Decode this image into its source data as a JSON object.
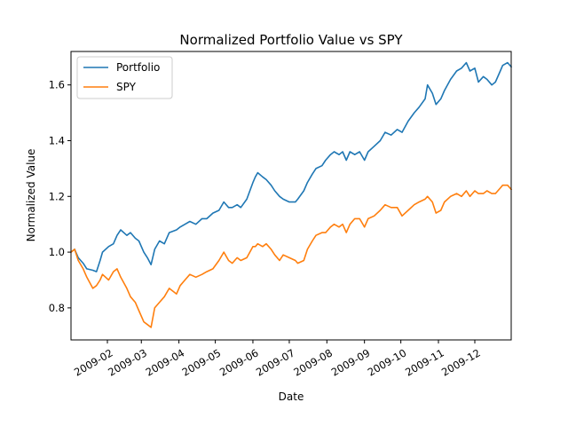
{
  "chart_data": {
    "type": "line",
    "title": "Normalized Portfolio Value vs SPY",
    "xlabel": "Date",
    "ylabel": "Normalized Value",
    "xlim": [
      "2009-01-02",
      "2009-12-31"
    ],
    "ylim": [
      0.685,
      1.72
    ],
    "x_ticks": [
      "2009-02-01",
      "2009-03-01",
      "2009-04-01",
      "2009-05-01",
      "2009-06-01",
      "2009-07-01",
      "2009-08-01",
      "2009-09-01",
      "2009-10-01",
      "2009-11-01",
      "2009-12-01"
    ],
    "x_tick_labels": [
      "2009-02",
      "2009-03",
      "2009-04",
      "2009-05",
      "2009-06",
      "2009-07",
      "2009-08",
      "2009-09",
      "2009-10",
      "2009-11",
      "2009-12"
    ],
    "y_ticks": [
      0.8,
      1.0,
      1.2,
      1.4,
      1.6
    ],
    "y_tick_labels": [
      "0.8",
      "1.0",
      "1.2",
      "1.4",
      "1.6"
    ],
    "legend_position": "top-left",
    "grid": false,
    "series": [
      {
        "name": "Portfolio",
        "color": "#1f77b4",
        "points": [
          [
            "2009-01-02",
            1.0
          ],
          [
            "2009-01-05",
            1.01
          ],
          [
            "2009-01-08",
            0.98
          ],
          [
            "2009-01-12",
            0.96
          ],
          [
            "2009-01-15",
            0.94
          ],
          [
            "2009-01-20",
            0.935
          ],
          [
            "2009-01-23",
            0.93
          ],
          [
            "2009-01-26",
            0.97
          ],
          [
            "2009-01-28",
            1.0
          ],
          [
            "2009-02-02",
            1.02
          ],
          [
            "2009-02-06",
            1.03
          ],
          [
            "2009-02-09",
            1.06
          ],
          [
            "2009-02-12",
            1.08
          ],
          [
            "2009-02-17",
            1.06
          ],
          [
            "2009-02-20",
            1.07
          ],
          [
            "2009-02-24",
            1.05
          ],
          [
            "2009-02-27",
            1.04
          ],
          [
            "2009-03-03",
            1.0
          ],
          [
            "2009-03-06",
            0.98
          ],
          [
            "2009-03-09",
            0.955
          ],
          [
            "2009-03-12",
            1.01
          ],
          [
            "2009-03-16",
            1.04
          ],
          [
            "2009-03-20",
            1.03
          ],
          [
            "2009-03-24",
            1.07
          ],
          [
            "2009-03-30",
            1.08
          ],
          [
            "2009-04-02",
            1.09
          ],
          [
            "2009-04-06",
            1.1
          ],
          [
            "2009-04-10",
            1.11
          ],
          [
            "2009-04-15",
            1.1
          ],
          [
            "2009-04-20",
            1.12
          ],
          [
            "2009-04-24",
            1.12
          ],
          [
            "2009-04-29",
            1.14
          ],
          [
            "2009-05-04",
            1.15
          ],
          [
            "2009-05-08",
            1.18
          ],
          [
            "2009-05-12",
            1.16
          ],
          [
            "2009-05-15",
            1.16
          ],
          [
            "2009-05-19",
            1.17
          ],
          [
            "2009-05-22",
            1.16
          ],
          [
            "2009-05-27",
            1.19
          ],
          [
            "2009-06-01",
            1.25
          ],
          [
            "2009-06-03",
            1.27
          ],
          [
            "2009-06-05",
            1.285
          ],
          [
            "2009-06-09",
            1.27
          ],
          [
            "2009-06-12",
            1.26
          ],
          [
            "2009-06-16",
            1.24
          ],
          [
            "2009-06-19",
            1.22
          ],
          [
            "2009-06-23",
            1.2
          ],
          [
            "2009-06-26",
            1.19
          ],
          [
            "2009-07-01",
            1.18
          ],
          [
            "2009-07-06",
            1.18
          ],
          [
            "2009-07-08",
            1.19
          ],
          [
            "2009-07-13",
            1.22
          ],
          [
            "2009-07-16",
            1.25
          ],
          [
            "2009-07-20",
            1.28
          ],
          [
            "2009-07-23",
            1.3
          ],
          [
            "2009-07-28",
            1.31
          ],
          [
            "2009-07-31",
            1.33
          ],
          [
            "2009-08-04",
            1.35
          ],
          [
            "2009-08-07",
            1.36
          ],
          [
            "2009-08-11",
            1.35
          ],
          [
            "2009-08-14",
            1.36
          ],
          [
            "2009-08-17",
            1.33
          ],
          [
            "2009-08-20",
            1.36
          ],
          [
            "2009-08-24",
            1.35
          ],
          [
            "2009-08-28",
            1.36
          ],
          [
            "2009-09-01",
            1.33
          ],
          [
            "2009-09-04",
            1.36
          ],
          [
            "2009-09-09",
            1.38
          ],
          [
            "2009-09-14",
            1.4
          ],
          [
            "2009-09-18",
            1.43
          ],
          [
            "2009-09-23",
            1.42
          ],
          [
            "2009-09-28",
            1.44
          ],
          [
            "2009-10-02",
            1.43
          ],
          [
            "2009-10-07",
            1.47
          ],
          [
            "2009-10-12",
            1.5
          ],
          [
            "2009-10-16",
            1.52
          ],
          [
            "2009-10-21",
            1.55
          ],
          [
            "2009-10-23",
            1.6
          ],
          [
            "2009-10-27",
            1.57
          ],
          [
            "2009-10-30",
            1.53
          ],
          [
            "2009-11-03",
            1.55
          ],
          [
            "2009-11-06",
            1.58
          ],
          [
            "2009-11-11",
            1.62
          ],
          [
            "2009-11-16",
            1.65
          ],
          [
            "2009-11-20",
            1.66
          ],
          [
            "2009-11-24",
            1.68
          ],
          [
            "2009-11-27",
            1.65
          ],
          [
            "2009-12-01",
            1.66
          ],
          [
            "2009-12-04",
            1.61
          ],
          [
            "2009-12-08",
            1.63
          ],
          [
            "2009-12-11",
            1.62
          ],
          [
            "2009-12-15",
            1.6
          ],
          [
            "2009-12-18",
            1.61
          ],
          [
            "2009-12-22",
            1.65
          ],
          [
            "2009-12-24",
            1.67
          ],
          [
            "2009-12-28",
            1.68
          ],
          [
            "2009-12-31",
            1.665
          ]
        ]
      },
      {
        "name": "SPY",
        "color": "#ff7f0e",
        "points": [
          [
            "2009-01-02",
            1.0
          ],
          [
            "2009-01-05",
            1.01
          ],
          [
            "2009-01-08",
            0.97
          ],
          [
            "2009-01-12",
            0.94
          ],
          [
            "2009-01-15",
            0.91
          ],
          [
            "2009-01-20",
            0.87
          ],
          [
            "2009-01-23",
            0.88
          ],
          [
            "2009-01-26",
            0.9
          ],
          [
            "2009-01-28",
            0.92
          ],
          [
            "2009-02-02",
            0.9
          ],
          [
            "2009-02-06",
            0.93
          ],
          [
            "2009-02-09",
            0.94
          ],
          [
            "2009-02-12",
            0.91
          ],
          [
            "2009-02-17",
            0.87
          ],
          [
            "2009-02-20",
            0.84
          ],
          [
            "2009-02-24",
            0.82
          ],
          [
            "2009-02-27",
            0.79
          ],
          [
            "2009-03-03",
            0.75
          ],
          [
            "2009-03-06",
            0.74
          ],
          [
            "2009-03-09",
            0.73
          ],
          [
            "2009-03-12",
            0.8
          ],
          [
            "2009-03-16",
            0.82
          ],
          [
            "2009-03-20",
            0.84
          ],
          [
            "2009-03-24",
            0.87
          ],
          [
            "2009-03-30",
            0.85
          ],
          [
            "2009-04-02",
            0.88
          ],
          [
            "2009-04-06",
            0.9
          ],
          [
            "2009-04-10",
            0.92
          ],
          [
            "2009-04-15",
            0.91
          ],
          [
            "2009-04-20",
            0.92
          ],
          [
            "2009-04-24",
            0.93
          ],
          [
            "2009-04-29",
            0.94
          ],
          [
            "2009-05-04",
            0.97
          ],
          [
            "2009-05-08",
            1.0
          ],
          [
            "2009-05-12",
            0.97
          ],
          [
            "2009-05-15",
            0.96
          ],
          [
            "2009-05-19",
            0.98
          ],
          [
            "2009-05-22",
            0.97
          ],
          [
            "2009-05-27",
            0.98
          ],
          [
            "2009-06-01",
            1.02
          ],
          [
            "2009-06-03",
            1.02
          ],
          [
            "2009-06-05",
            1.03
          ],
          [
            "2009-06-09",
            1.02
          ],
          [
            "2009-06-12",
            1.03
          ],
          [
            "2009-06-16",
            1.01
          ],
          [
            "2009-06-19",
            0.99
          ],
          [
            "2009-06-23",
            0.97
          ],
          [
            "2009-06-26",
            0.99
          ],
          [
            "2009-07-01",
            0.98
          ],
          [
            "2009-07-06",
            0.97
          ],
          [
            "2009-07-08",
            0.96
          ],
          [
            "2009-07-13",
            0.97
          ],
          [
            "2009-07-16",
            1.01
          ],
          [
            "2009-07-20",
            1.04
          ],
          [
            "2009-07-23",
            1.06
          ],
          [
            "2009-07-28",
            1.07
          ],
          [
            "2009-07-31",
            1.07
          ],
          [
            "2009-08-04",
            1.09
          ],
          [
            "2009-08-07",
            1.1
          ],
          [
            "2009-08-11",
            1.09
          ],
          [
            "2009-08-14",
            1.1
          ],
          [
            "2009-08-17",
            1.07
          ],
          [
            "2009-08-20",
            1.1
          ],
          [
            "2009-08-24",
            1.12
          ],
          [
            "2009-08-28",
            1.12
          ],
          [
            "2009-09-01",
            1.09
          ],
          [
            "2009-09-04",
            1.12
          ],
          [
            "2009-09-09",
            1.13
          ],
          [
            "2009-09-14",
            1.15
          ],
          [
            "2009-09-18",
            1.17
          ],
          [
            "2009-09-23",
            1.16
          ],
          [
            "2009-09-28",
            1.16
          ],
          [
            "2009-10-02",
            1.13
          ],
          [
            "2009-10-07",
            1.15
          ],
          [
            "2009-10-12",
            1.17
          ],
          [
            "2009-10-16",
            1.18
          ],
          [
            "2009-10-21",
            1.19
          ],
          [
            "2009-10-23",
            1.2
          ],
          [
            "2009-10-27",
            1.18
          ],
          [
            "2009-10-30",
            1.14
          ],
          [
            "2009-11-03",
            1.15
          ],
          [
            "2009-11-06",
            1.18
          ],
          [
            "2009-11-11",
            1.2
          ],
          [
            "2009-11-16",
            1.21
          ],
          [
            "2009-11-20",
            1.2
          ],
          [
            "2009-11-24",
            1.22
          ],
          [
            "2009-11-27",
            1.2
          ],
          [
            "2009-12-01",
            1.22
          ],
          [
            "2009-12-04",
            1.21
          ],
          [
            "2009-12-08",
            1.21
          ],
          [
            "2009-12-11",
            1.22
          ],
          [
            "2009-12-15",
            1.21
          ],
          [
            "2009-12-18",
            1.21
          ],
          [
            "2009-12-22",
            1.23
          ],
          [
            "2009-12-24",
            1.24
          ],
          [
            "2009-12-28",
            1.24
          ],
          [
            "2009-12-31",
            1.225
          ]
        ]
      }
    ]
  }
}
